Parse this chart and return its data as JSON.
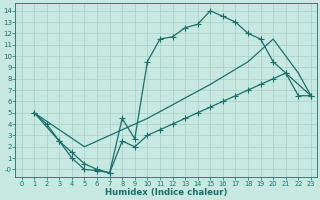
{
  "xlabel": "Humidex (Indice chaleur)",
  "bg_color": "#c8e8e2",
  "grid_color": "#a8cec8",
  "line_color": "#1a7068",
  "xlim": [
    -0.5,
    23.5
  ],
  "ylim": [
    -0.7,
    14.7
  ],
  "xticks": [
    0,
    1,
    2,
    3,
    4,
    5,
    6,
    7,
    8,
    9,
    10,
    11,
    12,
    13,
    14,
    15,
    16,
    17,
    18,
    19,
    20,
    21,
    22,
    23
  ],
  "yticks": [
    0,
    1,
    2,
    3,
    4,
    5,
    6,
    7,
    8,
    9,
    10,
    11,
    12,
    13,
    14
  ],
  "ytick_labels": [
    "-0",
    "1",
    "2",
    "3",
    "4",
    "5",
    "6",
    "7",
    "8",
    "9",
    "10",
    "11",
    "12",
    "13",
    "14"
  ],
  "curve1_x": [
    1,
    2,
    3,
    4,
    5,
    6,
    7,
    8,
    9,
    10,
    11,
    12,
    13,
    14,
    15,
    16,
    17,
    18,
    19,
    20,
    21,
    22,
    23
  ],
  "curve1_y": [
    5,
    4,
    2.5,
    1,
    0,
    -0.1,
    -0.3,
    4.5,
    2.7,
    9.5,
    11.5,
    11.7,
    12.5,
    12.8,
    14,
    13.5,
    13,
    12,
    11.5,
    9.5,
    8.5,
    6.5,
    6.5
  ],
  "curve2_x": [
    1,
    3,
    4,
    5,
    6,
    7,
    8,
    9,
    10,
    11,
    12,
    13,
    14,
    15,
    16,
    17,
    18,
    19,
    20,
    21,
    23
  ],
  "curve2_y": [
    5,
    2.5,
    1.5,
    0.5,
    0,
    -0.3,
    2.5,
    2,
    3,
    3.5,
    4,
    4.5,
    5,
    5.5,
    6,
    6.5,
    7,
    7.5,
    8,
    8.5,
    6.5
  ],
  "curve3_x": [
    1,
    5,
    10,
    15,
    18,
    20,
    21,
    22,
    23
  ],
  "curve3_y": [
    5,
    2,
    4.5,
    7.5,
    9.5,
    11.5,
    10,
    8.5,
    6.5
  ]
}
